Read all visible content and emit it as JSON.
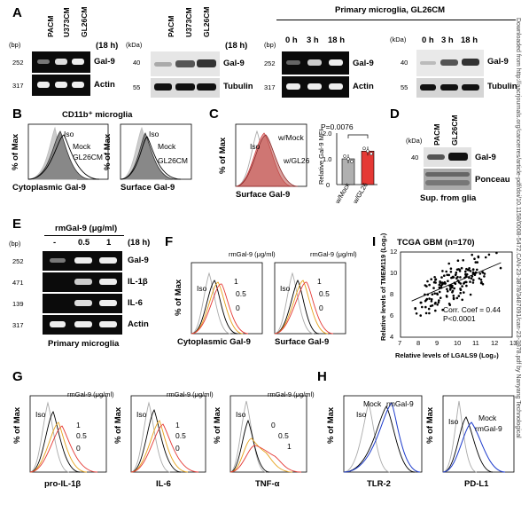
{
  "panels": {
    "A": {
      "label": "A",
      "lanes1": [
        "PACM",
        "U373CM",
        "GL26CM"
      ],
      "time": "(18 h)",
      "bp": "(bp)",
      "kda": "(kDa)",
      "gel_rows": [
        {
          "size": "252",
          "name": "Gal-9"
        },
        {
          "size": "317",
          "name": "Actin"
        }
      ],
      "wb_rows": [
        {
          "size": "40",
          "name": "Gal-9"
        },
        {
          "size": "55",
          "name": "Tubulin"
        }
      ],
      "primary_title": "Primary microglia, GL26CM",
      "lanes2": [
        "0 h",
        "3 h",
        "18 h"
      ]
    },
    "B": {
      "label": "B",
      "title": "CD11b⁺ microglia",
      "ylabel": "% of Max",
      "plots": [
        {
          "xlabel": "Cytoplasmic Gal-9",
          "legend": [
            "Iso",
            "Mock",
            "GL26CM"
          ]
        },
        {
          "xlabel": "Surface Gal-9",
          "legend": [
            "Iso",
            "Mock",
            "GL26CM"
          ]
        }
      ]
    },
    "C": {
      "label": "C",
      "ylabel": "% of Max",
      "xlabel": "Surface Gal-9",
      "legend": [
        "Iso",
        "w/Mock",
        "w/GL26"
      ],
      "bar_ylabel": "Relative Gal-9 MFI",
      "pval": "P=0.0076",
      "yticks": [
        "0",
        "1.0",
        "2.0"
      ]
    },
    "D": {
      "label": "D",
      "kda": "(kDa)",
      "lanes": [
        "PACM",
        "GL26CM"
      ],
      "size": "40",
      "rows": [
        "Gal-9",
        "Ponceau"
      ],
      "caption": "Sup. from glia"
    },
    "E": {
      "label": "E",
      "title": "rmGal-9 (μg/ml)",
      "doses": [
        "-",
        "0.5",
        "1"
      ],
      "time": "(18 h)",
      "bp": "(bp)",
      "rows": [
        {
          "size": "252",
          "name": "Gal-9"
        },
        {
          "size": "471",
          "name": "IL-1β"
        },
        {
          "size": "139",
          "name": "IL-6"
        },
        {
          "size": "317",
          "name": "Actin"
        }
      ],
      "caption": "Primary microglia"
    },
    "F": {
      "label": "F",
      "ylabel": "% of Max",
      "legend_title": "rmGal-9 (μg/ml)",
      "levels": [
        "1",
        "0.5",
        "0"
      ],
      "iso": "Iso",
      "xlabels": [
        "Cytoplasmic Gal-9",
        "Surface Gal-9"
      ]
    },
    "G": {
      "label": "G",
      "ylabel": "% of Max",
      "legend_title": "rmGal-9 (μg/ml)",
      "iso": "Iso",
      "plots": [
        {
          "xlabel": "pro-IL-1β",
          "levels": [
            "1",
            "0.5",
            "0"
          ]
        },
        {
          "xlabel": "IL-6",
          "levels": [
            "1",
            "0.5",
            "0"
          ]
        },
        {
          "xlabel": "TNF-α",
          "levels": [
            "0",
            "0.5",
            "1"
          ]
        }
      ]
    },
    "H": {
      "label": "H",
      "ylabel": "% of Max",
      "plots": [
        {
          "xlabel": "TLR-2",
          "legend": [
            "Mock",
            "rmGal-9",
            "Iso"
          ]
        },
        {
          "xlabel": "PD-L1",
          "legend": [
            "Mock",
            "rmGal-9",
            "Iso"
          ]
        }
      ]
    },
    "I": {
      "label": "I",
      "title": "TCGA GBM (n=170)",
      "ylabel": "Relative levels of TMEM119 (Log₂)",
      "xlabel": "Relative levels of LGALS9 (Log₂)",
      "corr": "Corr. Coef = 0.44",
      "pval": "P<0.0001",
      "xticks": [
        "7",
        "8",
        "9",
        "10",
        "11",
        "12",
        "13"
      ],
      "yticks": [
        "4",
        "6",
        "8",
        "10",
        "12"
      ]
    }
  },
  "side_text": "Downloaded from http://aacrjournals.org/cancerres/article-pdf/doi/10.1158/0008-5472.CAN-23-3878/3487091/can-23-3878.pdf by Nanyang Technological",
  "chart_data": [
    {
      "type": "bar",
      "panel": "C",
      "categories": [
        "w/Mock",
        "w/GL26"
      ],
      "values": [
        1.0,
        1.3
      ],
      "ylim": [
        0,
        2.0
      ],
      "ylabel": "Relative Gal-9 MFI",
      "colors": [
        "#b0b0b0",
        "#e53935"
      ]
    },
    {
      "type": "scatter",
      "panel": "I",
      "title": "TCGA GBM (n=170)",
      "xlim": [
        7,
        13
      ],
      "ylim": [
        4,
        12
      ],
      "xlabel": "Relative levels of LGALS9 (Log2)",
      "ylabel": "Relative levels of TMEM119 (Log2)",
      "fit": {
        "x": [
          7.6,
          12.4
        ],
        "y": [
          7.4,
          11.0
        ]
      }
    }
  ]
}
